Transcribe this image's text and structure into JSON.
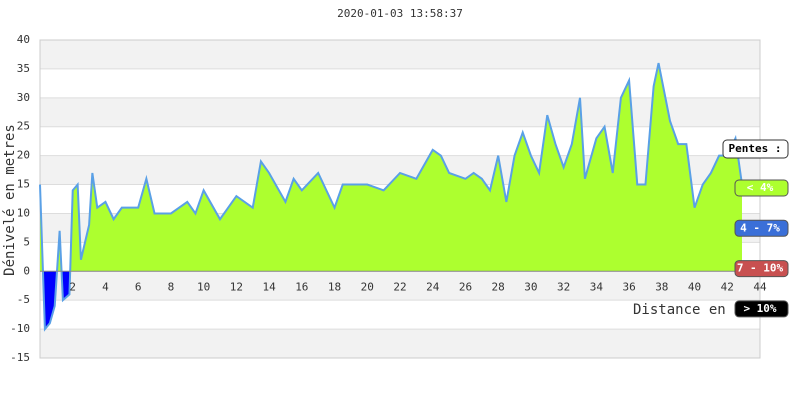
{
  "chart_data": {
    "type": "area",
    "title": "2020-01-03 13:58:37",
    "y_label": "Dénivelé en metres",
    "x_label": "Distance en",
    "x": [
      0,
      0.3,
      0.6,
      0.9,
      1.2,
      1.4,
      1.8,
      2.0,
      2.3,
      2.5,
      3,
      3.2,
      3.5,
      4,
      4.5,
      5,
      6,
      6.5,
      7,
      8,
      9,
      9.5,
      10,
      11,
      12,
      13,
      13.5,
      14,
      15,
      15.5,
      16,
      17,
      18,
      18.5,
      19,
      20,
      21,
      22,
      23,
      24,
      24.5,
      25,
      26,
      26.5,
      27,
      27.5,
      28,
      28.5,
      29,
      29.5,
      30,
      30.5,
      31,
      31.5,
      32,
      32.5,
      33,
      33.3,
      34,
      34.5,
      35,
      35.5,
      36,
      36.5,
      37,
      37.5,
      37.8,
      38.5,
      39,
      39.5,
      40,
      40.5,
      41,
      41.5,
      42,
      42.5,
      42.9
    ],
    "series": [
      {
        "name": "profil",
        "color": "#5aa0e6",
        "fill": "#adff2f",
        "negative_fill": "#0000ff",
        "values": [
          15,
          -10,
          -9,
          -6,
          7,
          -5,
          -4,
          14,
          15,
          2,
          8,
          17,
          11,
          12,
          9,
          11,
          11,
          16,
          10,
          10,
          12,
          10,
          14,
          9,
          13,
          11,
          19,
          17,
          12,
          16,
          14,
          17,
          11,
          15,
          15,
          15,
          14,
          17,
          16,
          21,
          20,
          17,
          16,
          17,
          16,
          14,
          20,
          12,
          20,
          24,
          20,
          17,
          27,
          22,
          18,
          22,
          30,
          16,
          23,
          25,
          17,
          30,
          33,
          15,
          15,
          32,
          36,
          26,
          22,
          22,
          11,
          15,
          17,
          20,
          20,
          23,
          15
        ]
      }
    ],
    "xlim": [
      0,
      44
    ],
    "ylim": [
      -15,
      40
    ],
    "xticks": [
      2,
      4,
      6,
      8,
      10,
      12,
      14,
      16,
      18,
      20,
      22,
      24,
      26,
      28,
      30,
      32,
      34,
      36,
      38,
      40,
      42,
      44
    ],
    "yticks": [
      -15,
      -10,
      -5,
      0,
      5,
      10,
      15,
      20,
      25,
      30,
      35,
      40
    ],
    "grid": true,
    "legend": {
      "title": "Pentes :",
      "items": [
        {
          "label": "< 4%",
          "color": "#adff2f"
        },
        {
          "label": "4 - 7%",
          "color": "#3a6fd8"
        },
        {
          "label": "7 - 10%",
          "color": "#c85050"
        },
        {
          "label": "> 10%",
          "color": "#000000"
        }
      ]
    }
  }
}
